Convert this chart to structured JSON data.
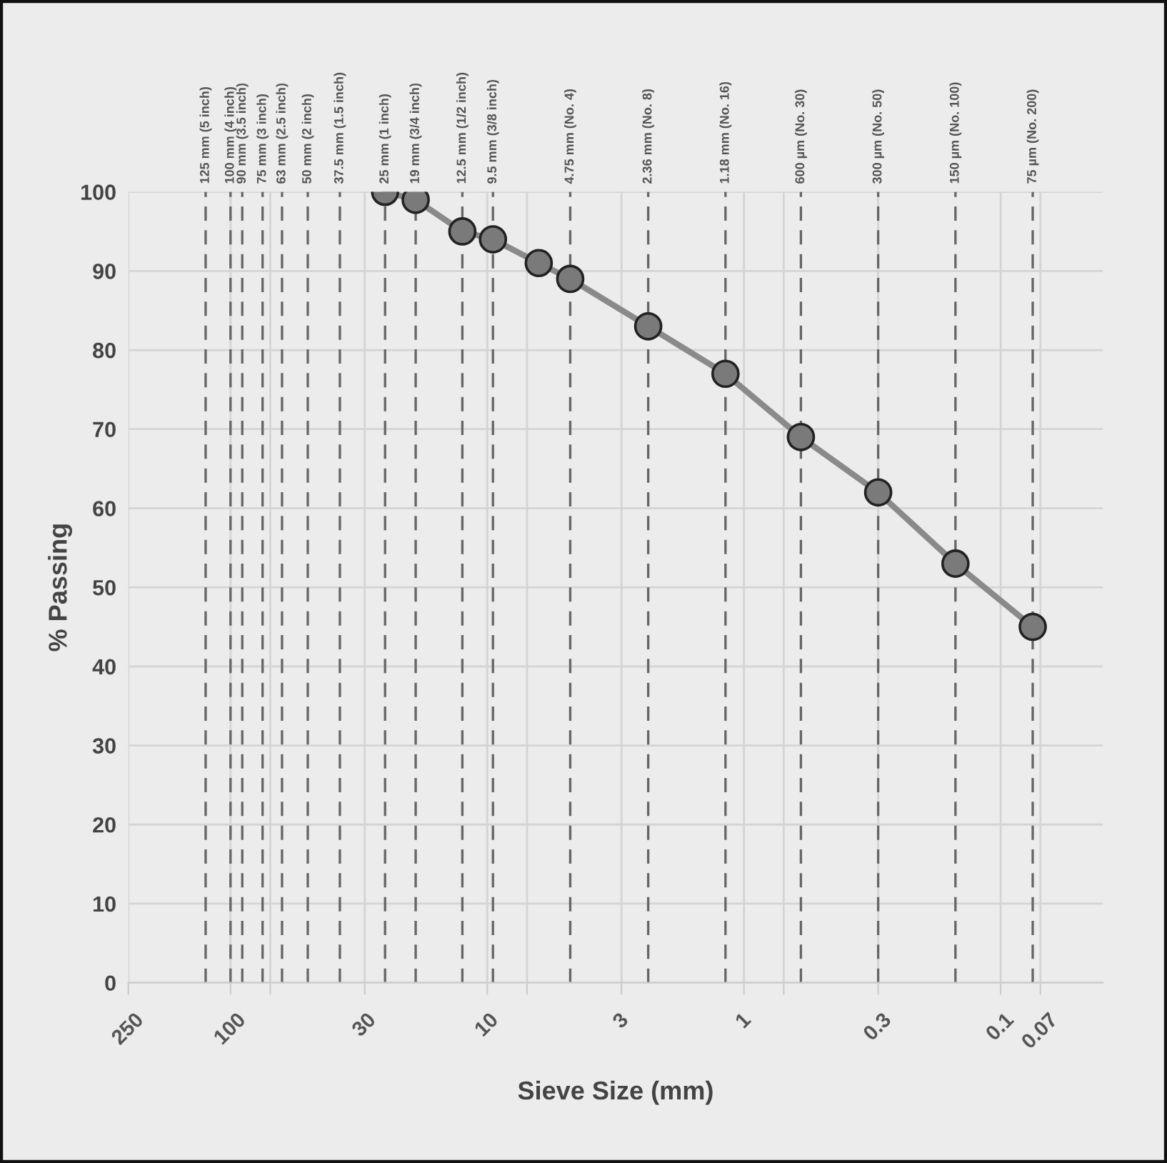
{
  "chart_data": {
    "type": "line",
    "xlabel": "Sieve Size (mm)",
    "ylabel": "% Passing",
    "x": [
      25,
      19,
      12.5,
      9.5,
      6.3,
      4.75,
      2.36,
      1.18,
      0.6,
      0.3,
      0.15,
      0.075
    ],
    "series": [
      {
        "color": "#8a8a8a",
        "values": [
          100,
          99,
          95,
          94,
          91,
          89,
          83,
          77,
          69,
          62,
          53,
          45
        ]
      }
    ],
    "marker": "circle",
    "line_style": "solid",
    "log": "x",
    "grid": true,
    "xlim": [
      250,
      0.04
    ],
    "xticks": [
      250,
      100,
      {
        "value": 70,
        "label": null
      },
      30,
      10,
      {
        "value": 7,
        "label": null
      },
      3,
      1,
      {
        "value": 0.7,
        "label": null
      },
      0.3,
      0.1,
      0.07
    ],
    "ylim": [
      0,
      100
    ],
    "yticks": [
      0,
      10,
      20,
      30,
      40,
      50,
      60,
      70,
      80,
      90,
      100
    ],
    "ref_lines": [
      {
        "axis": "x",
        "value": 125,
        "label": "125 mm (5 inch)",
        "color": "#666666",
        "line_style": "dashed"
      },
      {
        "axis": "x",
        "value": 100,
        "label": "100 mm (4 inch)",
        "color": "#666666",
        "line_style": "dashed"
      },
      {
        "axis": "x",
        "value": 90,
        "label": "90 mm (3.5 inch)",
        "color": "#666666",
        "line_style": "dashed"
      },
      {
        "axis": "x",
        "value": 75,
        "label": "75 mm (3 inch)",
        "color": "#666666",
        "line_style": "dashed"
      },
      {
        "axis": "x",
        "value": 63,
        "label": "63 mm (2.5 inch)",
        "color": "#666666",
        "line_style": "dashed"
      },
      {
        "axis": "x",
        "value": 50,
        "label": "50 mm (2 inch)",
        "color": "#666666",
        "line_style": "dashed"
      },
      {
        "axis": "x",
        "value": 37.5,
        "label": "37.5 mm (1.5 inch)",
        "color": "#666666",
        "line_style": "dashed"
      },
      {
        "axis": "x",
        "value": 25,
        "label": "25 mm (1 inch)",
        "color": "#666666",
        "line_style": "dashed"
      },
      {
        "axis": "x",
        "value": 19,
        "label": "19 mm (3/4 inch)",
        "color": "#666666",
        "line_style": "dashed"
      },
      {
        "axis": "x",
        "value": 12.5,
        "label": "12.5 mm (1/2 inch)",
        "color": "#666666",
        "line_style": "dashed"
      },
      {
        "axis": "x",
        "value": 9.5,
        "label": "9.5 mm (3/8 inch)",
        "color": "#666666",
        "line_style": "dashed"
      },
      {
        "axis": "x",
        "value": 4.75,
        "label": "4.75 mm (No. 4)",
        "color": "#666666",
        "line_style": "dashed"
      },
      {
        "axis": "x",
        "value": 2.36,
        "label": "2.36 mm (No. 8)",
        "color": "#666666",
        "line_style": "dashed"
      },
      {
        "axis": "x",
        "value": 1.18,
        "label": "1.18 mm (No. 16)",
        "color": "#666666",
        "line_style": "dashed"
      },
      {
        "axis": "x",
        "value": 0.6,
        "label": "600 µm (No. 30)",
        "color": "#666666",
        "line_style": "dashed"
      },
      {
        "axis": "x",
        "value": 0.3,
        "label": "300 µm (No. 50)",
        "color": "#666666",
        "line_style": "dashed"
      },
      {
        "axis": "x",
        "value": 0.15,
        "label": "150 µm (No. 100)",
        "color": "#666666",
        "line_style": "dashed"
      },
      {
        "axis": "x",
        "value": 0.075,
        "label": "75 µm (No. 200)",
        "color": "#666666",
        "line_style": "dashed"
      }
    ]
  }
}
